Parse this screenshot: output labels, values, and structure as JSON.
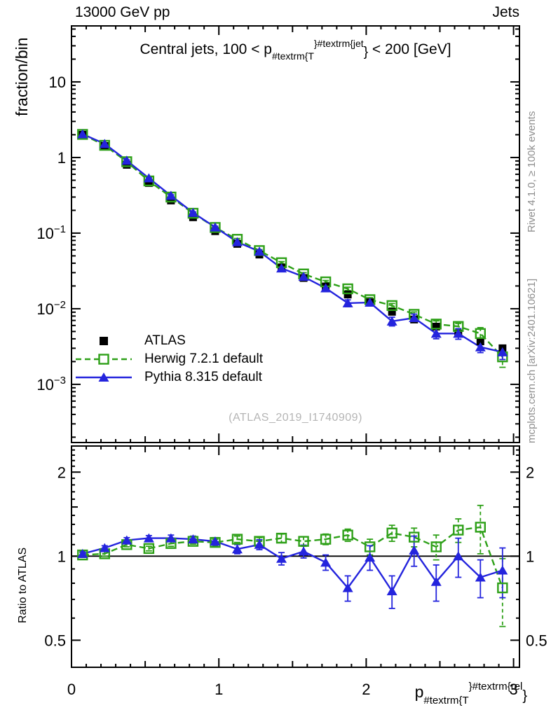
{
  "header": {
    "left": "13000 GeV pp",
    "right": "Jets"
  },
  "side_notes": {
    "generator": "Rivet 4.1.0, ≥ 100k events",
    "source": "mcplots.cern.ch [arXiv:2401.10621]"
  },
  "watermark": "(ATLAS_2019_I1740909)",
  "titles": {
    "main": {
      "pre": "Central jets, 100 < p",
      "sub": "#textrm{T",
      "sup": "}#textrm{jet",
      "close": "}",
      "post": " < 200 [GeV]"
    },
    "xaxis": {
      "pre": "p",
      "sub": "#textrm{T",
      "sup": "}#textrm{rel",
      "close": "}"
    }
  },
  "colors": {
    "atlas": "#000000",
    "herwig": "#2ea018",
    "pythia": "#2424dd",
    "frame": "#000000",
    "note_gray": "#8f8f8f",
    "watermark_gray": "#b5b5b5"
  },
  "chart_data": {
    "type": "line",
    "title": "Central jets, 100 < pT^jet < 200 [GeV]",
    "xlabel": "pT^rel",
    "ylabel": "fraction/bin",
    "ylabel_ratio": "Ratio to ATLAS",
    "yscale": "log",
    "grid": false,
    "legend_position": "middle-left",
    "xlim": [
      0,
      3.04
    ],
    "ylim_main": [
      0.00017,
      55
    ],
    "ylim_ratio": [
      0.4,
      2.48
    ],
    "bin_width": 0.15,
    "x": [
      0.075,
      0.225,
      0.375,
      0.525,
      0.675,
      0.825,
      0.975,
      1.125,
      1.275,
      1.425,
      1.575,
      1.725,
      1.875,
      2.025,
      2.175,
      2.325,
      2.475,
      2.625,
      2.775,
      2.925
    ],
    "xticks": [
      {
        "v": 0,
        "label": "0"
      },
      {
        "v": 1,
        "label": "1"
      },
      {
        "v": 2,
        "label": "2"
      },
      {
        "v": 3,
        "label": "3"
      }
    ],
    "yticks_main": [
      {
        "v": 10,
        "label": "10"
      },
      {
        "v": 1,
        "label": "1"
      },
      {
        "v": 0.1,
        "label": "10^−1"
      },
      {
        "v": 0.01,
        "label": "10^−2"
      },
      {
        "v": 0.001,
        "label": "10^−3"
      }
    ],
    "yticks_ratio": [
      {
        "v": 2,
        "label": "2"
      },
      {
        "v": 1,
        "label": "1"
      },
      {
        "v": 0.5,
        "label": "0.5"
      }
    ],
    "series": [
      {
        "name": "ATLAS",
        "color": "#000000",
        "marker": "filled-square",
        "line": "none",
        "values": [
          2.0,
          1.42,
          0.8,
          0.46,
          0.27,
          0.162,
          0.106,
          0.072,
          0.052,
          0.035,
          0.0255,
          0.0197,
          0.0154,
          0.0122,
          0.0091,
          0.0072,
          0.0058,
          0.0047,
          0.0037,
          0.003
        ],
        "rel_err": [
          0.01,
          0.01,
          0.01,
          0.012,
          0.014,
          0.016,
          0.018,
          0.02,
          0.022,
          0.025,
          0.028,
          0.03,
          0.033,
          0.036,
          0.04,
          0.044,
          0.048,
          0.052,
          0.056,
          0.06
        ]
      },
      {
        "name": "Herwig 7.2.1 default",
        "color": "#2ea018",
        "marker": "open-square",
        "line": "dashed",
        "ratio_to_atlas": [
          1.01,
          1.02,
          1.1,
          1.065,
          1.11,
          1.13,
          1.12,
          1.15,
          1.13,
          1.16,
          1.13,
          1.15,
          1.19,
          1.08,
          1.21,
          1.17,
          1.08,
          1.24,
          1.27,
          0.77
        ],
        "ratio_err": [
          0.02,
          0.02,
          0.02,
          0.02,
          0.025,
          0.025,
          0.03,
          0.03,
          0.035,
          0.04,
          0.045,
          0.05,
          0.06,
          0.07,
          0.08,
          0.09,
          0.11,
          0.12,
          0.25,
          0.21
        ]
      },
      {
        "name": "Pythia 8.315 default",
        "color": "#2424dd",
        "marker": "filled-triangle",
        "line": "solid",
        "ratio_to_atlas": [
          1.02,
          1.07,
          1.14,
          1.16,
          1.16,
          1.15,
          1.13,
          1.06,
          1.1,
          0.98,
          1.04,
          0.95,
          0.77,
          0.99,
          0.75,
          1.05,
          0.81,
          1.0,
          0.84,
          0.89
        ],
        "ratio_err": [
          0.02,
          0.02,
          0.025,
          0.025,
          0.03,
          0.03,
          0.035,
          0.04,
          0.045,
          0.05,
          0.055,
          0.06,
          0.08,
          0.1,
          0.1,
          0.13,
          0.12,
          0.16,
          0.13,
          0.18
        ]
      }
    ]
  }
}
